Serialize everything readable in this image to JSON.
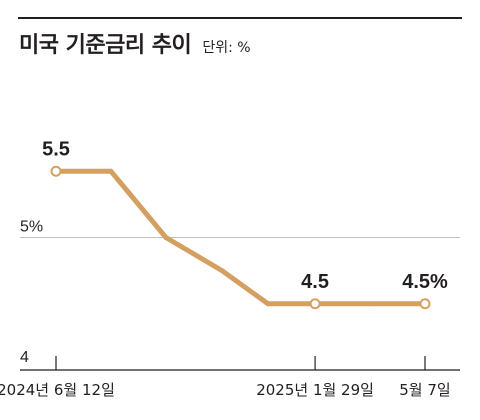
{
  "title": "미국 기준금리 추이",
  "unit": "단위: %",
  "colors": {
    "line": "#d4a062",
    "grid": "#bfbfbf",
    "axis": "#231f20",
    "text": "#231f20"
  },
  "chart_data": {
    "type": "line",
    "series": [
      {
        "x": [
          "2024-06-12",
          "2024-07-31",
          "2024-09-18",
          "2024-11-07",
          "2024-12-18",
          "2025-01-29",
          "2025-03-19",
          "2025-05-07"
        ],
        "values": [
          5.5,
          5.5,
          5.0,
          4.75,
          4.5,
          4.5,
          4.5,
          4.5
        ]
      }
    ],
    "ylim": [
      4,
      6
    ],
    "yticks": [
      {
        "value": 5,
        "label": "5%"
      },
      {
        "value": 4,
        "label": "4"
      }
    ],
    "xticks": [
      {
        "x": "2024-06-12",
        "label": "2024년 6월 12일"
      },
      {
        "x": "2025-01-29",
        "label": "2025년 1월 29일"
      },
      {
        "x": "2025-05-07",
        "label": "5월 7일"
      }
    ],
    "data_labels": [
      {
        "x": "2024-06-12",
        "label": "5.5"
      },
      {
        "x": "2025-01-29",
        "label": "4.5"
      },
      {
        "x": "2025-05-07",
        "label": "4.5%"
      }
    ],
    "markers": [
      "2024-06-12",
      "2025-01-29",
      "2025-05-07"
    ],
    "grid": true
  }
}
